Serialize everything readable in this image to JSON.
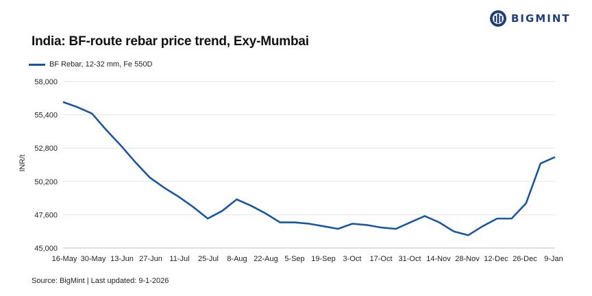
{
  "brand": {
    "name": "BIGMINT",
    "color": "#1f3f7a"
  },
  "title": "India: BF-route rebar price trend, Exy-Mumbai",
  "source": "Source: BigMint | Last updated: 9-1-2026",
  "chart_data": {
    "type": "line",
    "title": "India: BF-route rebar price trend, Exy-Mumbai",
    "xlabel": "",
    "ylabel": "INR/t",
    "ylim": [
      45000,
      58000
    ],
    "y_ticks": [
      45000,
      47600,
      50200,
      52800,
      55400,
      58000
    ],
    "y_tick_labels": [
      "45,000",
      "47,600",
      "50,200",
      "52,800",
      "55,400",
      "58,000"
    ],
    "x_tick_labels": [
      "16-May",
      "30-May",
      "13-Jun",
      "27-Jun",
      "11-Jul",
      "25-Jul",
      "8-Aug",
      "22-Aug",
      "5-Sep",
      "19-Sep",
      "3-Oct",
      "17-Oct",
      "31-Oct",
      "14-Nov",
      "28-Nov",
      "12-Dec",
      "26-Dec",
      "9-Jan"
    ],
    "grid": "horizontal",
    "legend_position": "top-left",
    "series": [
      {
        "name": "BF Rebar, 12-32 mm, Fe 550D",
        "color": "#1a56a0",
        "x": [
          "16-May",
          "23-May",
          "30-May",
          "6-Jun",
          "13-Jun",
          "20-Jun",
          "27-Jun",
          "4-Jul",
          "11-Jul",
          "18-Jul",
          "25-Jul",
          "1-Aug",
          "8-Aug",
          "15-Aug",
          "22-Aug",
          "29-Aug",
          "5-Sep",
          "12-Sep",
          "19-Sep",
          "26-Sep",
          "3-Oct",
          "10-Oct",
          "17-Oct",
          "24-Oct",
          "31-Oct",
          "7-Nov",
          "14-Nov",
          "21-Nov",
          "28-Nov",
          "5-Dec",
          "12-Dec",
          "19-Dec",
          "26-Dec",
          "2-Jan",
          "9-Jan"
        ],
        "values": [
          56400,
          56000,
          55500,
          54200,
          53000,
          51700,
          50500,
          49700,
          49000,
          48200,
          47300,
          47900,
          48800,
          48300,
          47700,
          47000,
          47000,
          46900,
          46700,
          46500,
          46900,
          46800,
          46600,
          46500,
          47000,
          47500,
          47000,
          46300,
          46000,
          46700,
          47300,
          47300,
          48500,
          51600,
          52100
        ]
      }
    ]
  }
}
